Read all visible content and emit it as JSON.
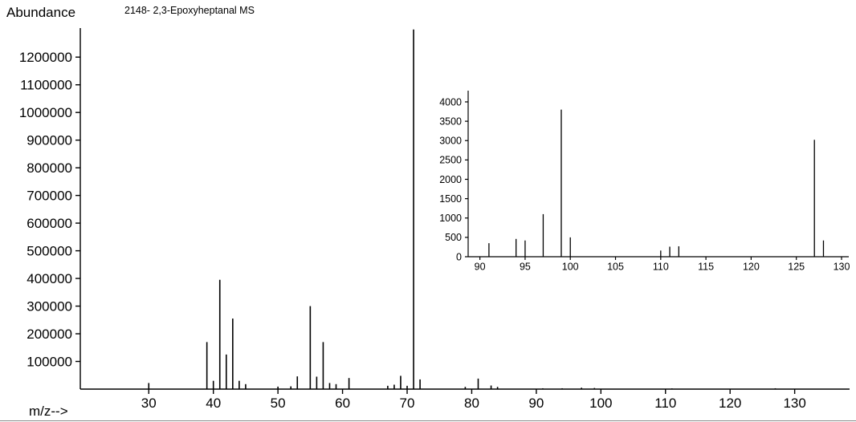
{
  "page": {
    "title_note": "2148- 2,3-Epoxyheptanal MS",
    "y_axis_label": "Abundance",
    "x_axis_label": "m/z-->"
  },
  "chart_data": [
    {
      "type": "bar",
      "role": "main-spectrum",
      "title": "2148- 2,3-Epoxyheptanal MS",
      "xlabel": "m/z-->",
      "ylabel": "Abundance",
      "grid": false,
      "xlim": [
        19.4,
        138.5
      ],
      "ylim": [
        0,
        1305000
      ],
      "x_ticks": [
        30,
        40,
        50,
        60,
        70,
        80,
        90,
        100,
        110,
        120,
        130
      ],
      "y_ticks": [
        100000,
        200000,
        300000,
        400000,
        500000,
        600000,
        700000,
        800000,
        900000,
        1000000,
        1100000,
        1200000
      ],
      "peaks": [
        [
          30,
          22000
        ],
        [
          39,
          170000
        ],
        [
          40,
          30000
        ],
        [
          41,
          395000
        ],
        [
          42,
          125000
        ],
        [
          43,
          255000
        ],
        [
          44,
          30000
        ],
        [
          45,
          18000
        ],
        [
          50,
          9000
        ],
        [
          52,
          10000
        ],
        [
          53,
          46000
        ],
        [
          55,
          300000
        ],
        [
          56,
          45000
        ],
        [
          57,
          170000
        ],
        [
          58,
          22000
        ],
        [
          59,
          18000
        ],
        [
          61,
          40000
        ],
        [
          67,
          12000
        ],
        [
          68,
          16000
        ],
        [
          69,
          48000
        ],
        [
          70,
          12000
        ],
        [
          71,
          1300000
        ],
        [
          72,
          35000
        ],
        [
          79,
          8000
        ],
        [
          81,
          38000
        ],
        [
          83,
          13000
        ],
        [
          84,
          8000
        ],
        [
          91,
          3000
        ],
        [
          94,
          3000
        ],
        [
          97,
          5000
        ],
        [
          99,
          4000
        ],
        [
          111,
          2500
        ],
        [
          127,
          3000
        ]
      ]
    },
    {
      "type": "bar",
      "role": "inset-spectrum",
      "title": "",
      "xlabel": "",
      "ylabel": "",
      "grid": false,
      "xlim": [
        88.7,
        130.8
      ],
      "ylim": [
        0,
        4290
      ],
      "x_ticks": [
        90,
        95,
        100,
        105,
        110,
        115,
        120,
        125,
        130
      ],
      "y_ticks": [
        0,
        500,
        1000,
        1500,
        2000,
        2500,
        3000,
        3500,
        4000
      ],
      "peaks": [
        [
          91,
          350
        ],
        [
          94,
          460
        ],
        [
          95,
          420
        ],
        [
          97,
          1100
        ],
        [
          99,
          3800
        ],
        [
          100,
          500
        ],
        [
          110,
          160
        ],
        [
          111,
          260
        ],
        [
          112,
          270
        ],
        [
          127,
          3020
        ],
        [
          128,
          420
        ]
      ]
    }
  ]
}
